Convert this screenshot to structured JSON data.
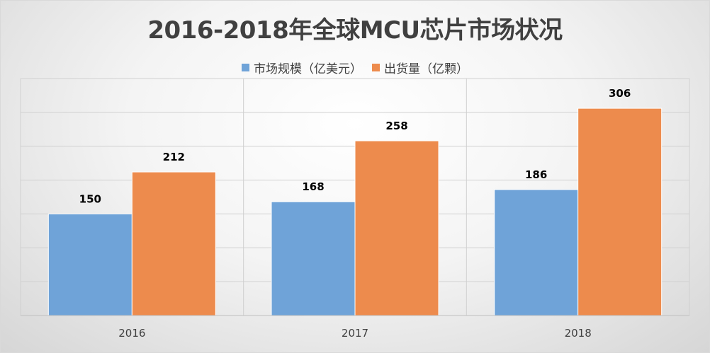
{
  "chart_data": {
    "type": "bar",
    "title": "2016-2018年全球MCU芯片市场状况",
    "categories": [
      "2016",
      "2017",
      "2018"
    ],
    "series": [
      {
        "name": "市场规模（亿美元）",
        "values": [
          150,
          168,
          186
        ],
        "color": "#6fa3d8"
      },
      {
        "name": "出货量（亿颗）",
        "values": [
          212,
          258,
          306
        ],
        "color": "#ed8b4d"
      }
    ],
    "xlabel": "",
    "ylabel": "",
    "ylim": [
      0,
      350
    ],
    "grid": true,
    "legend_position": "top-center",
    "data_labels": true
  }
}
